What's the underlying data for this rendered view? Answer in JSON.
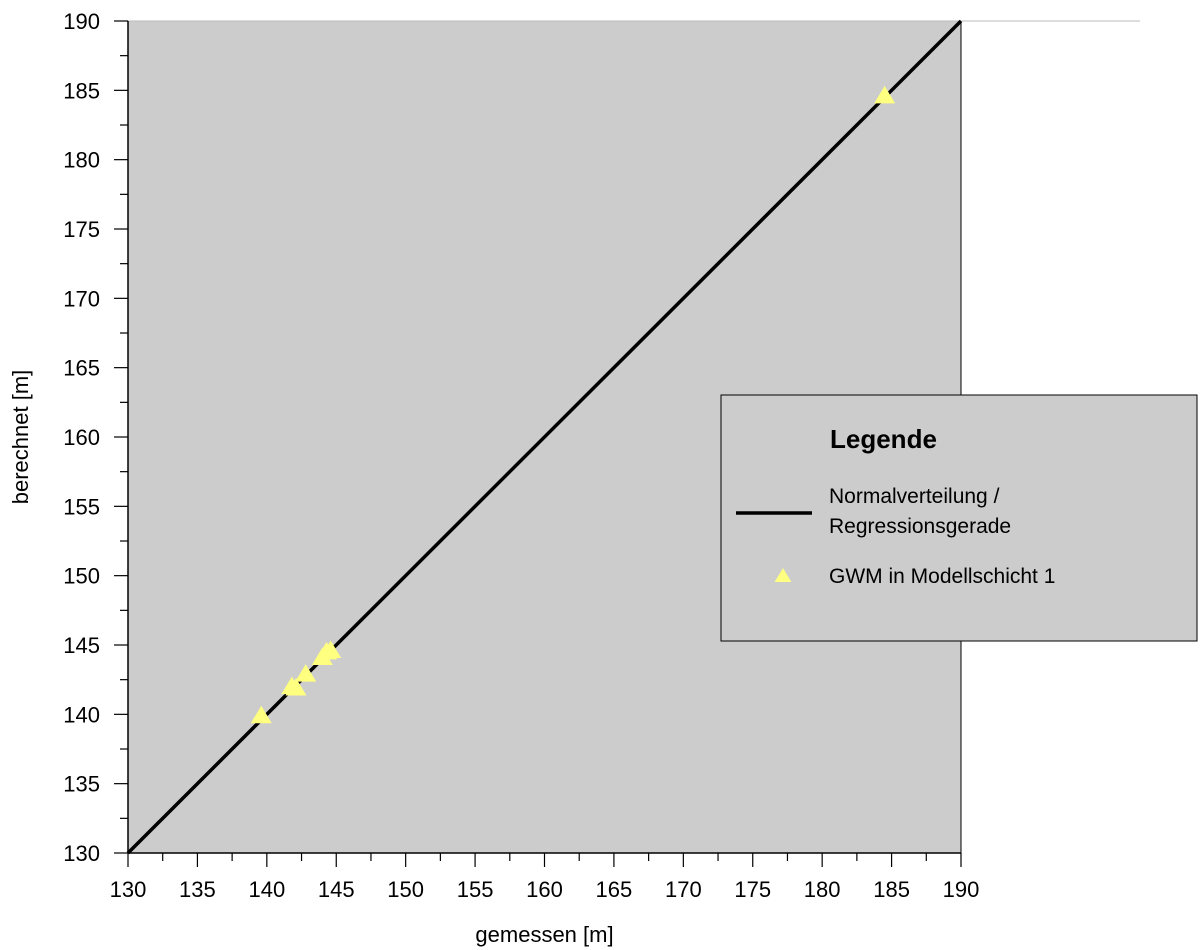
{
  "chart_data": {
    "type": "scatter",
    "xlabel": "gemessen [m]",
    "ylabel": "berechnet [m]",
    "xlim": [
      130,
      190
    ],
    "ylim": [
      130,
      190
    ],
    "x_ticks": [
      130,
      135,
      140,
      145,
      150,
      155,
      160,
      165,
      170,
      175,
      180,
      185,
      190
    ],
    "y_ticks": [
      130,
      135,
      140,
      145,
      150,
      155,
      160,
      165,
      170,
      175,
      180,
      185,
      190
    ],
    "minor_tick_step": 2.5,
    "grid": false,
    "plot_background": "#cccccc",
    "reference_line": {
      "label": "Normalverteilung / Regressionsgerade",
      "label_lines": [
        "Normalverteilung /",
        "Regressionsgerade"
      ],
      "x": [
        130,
        190
      ],
      "y": [
        130,
        190
      ],
      "color": "#000000"
    },
    "series": [
      {
        "name": "GWM in Modellschicht 1",
        "marker": "triangle",
        "color": "#ffff80",
        "points": [
          {
            "x": 139.6,
            "y": 139.9
          },
          {
            "x": 141.8,
            "y": 142.0
          },
          {
            "x": 142.1,
            "y": 141.9
          },
          {
            "x": 142.8,
            "y": 142.9
          },
          {
            "x": 144.0,
            "y": 144.1
          },
          {
            "x": 144.3,
            "y": 144.5
          },
          {
            "x": 144.6,
            "y": 144.6
          },
          {
            "x": 184.5,
            "y": 184.6
          }
        ]
      }
    ],
    "legend": {
      "title": "Legende",
      "position": "right"
    }
  }
}
